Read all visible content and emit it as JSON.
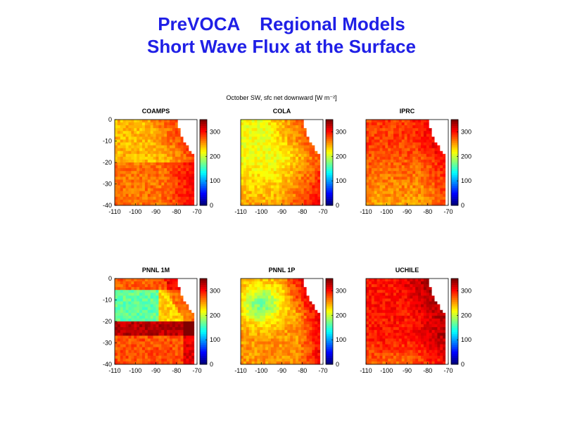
{
  "slide": {
    "title_line1": "PreVOCA    Regional Models",
    "title_line2": "Short Wave Flux at the Surface",
    "title_color": "#1f1fe6"
  },
  "chart_data": {
    "type": "heatmap",
    "title": "October SW, sfc net downward [W m⁻²]",
    "colormap": "jet",
    "colorbar": {
      "range": [
        0,
        350
      ],
      "ticks": [
        0,
        100,
        200,
        300
      ]
    },
    "x_ticks": [
      -110,
      -100,
      -90,
      -80,
      -70
    ],
    "xlim": [
      -110,
      -70
    ],
    "y_ticks": [
      0,
      -10,
      -20,
      -30,
      -40
    ],
    "ylim": [
      -40,
      0
    ],
    "panels": [
      {
        "name": "COAMPS",
        "pattern": "coamps"
      },
      {
        "name": "COLA",
        "pattern": "cola"
      },
      {
        "name": "IPRC",
        "pattern": "iprc"
      },
      {
        "name": "PNNL 1M",
        "pattern": "pnnl1m"
      },
      {
        "name": "PNNL 1P",
        "pattern": "pnnl1p"
      },
      {
        "name": "UCHILE",
        "pattern": "uchile"
      }
    ]
  }
}
